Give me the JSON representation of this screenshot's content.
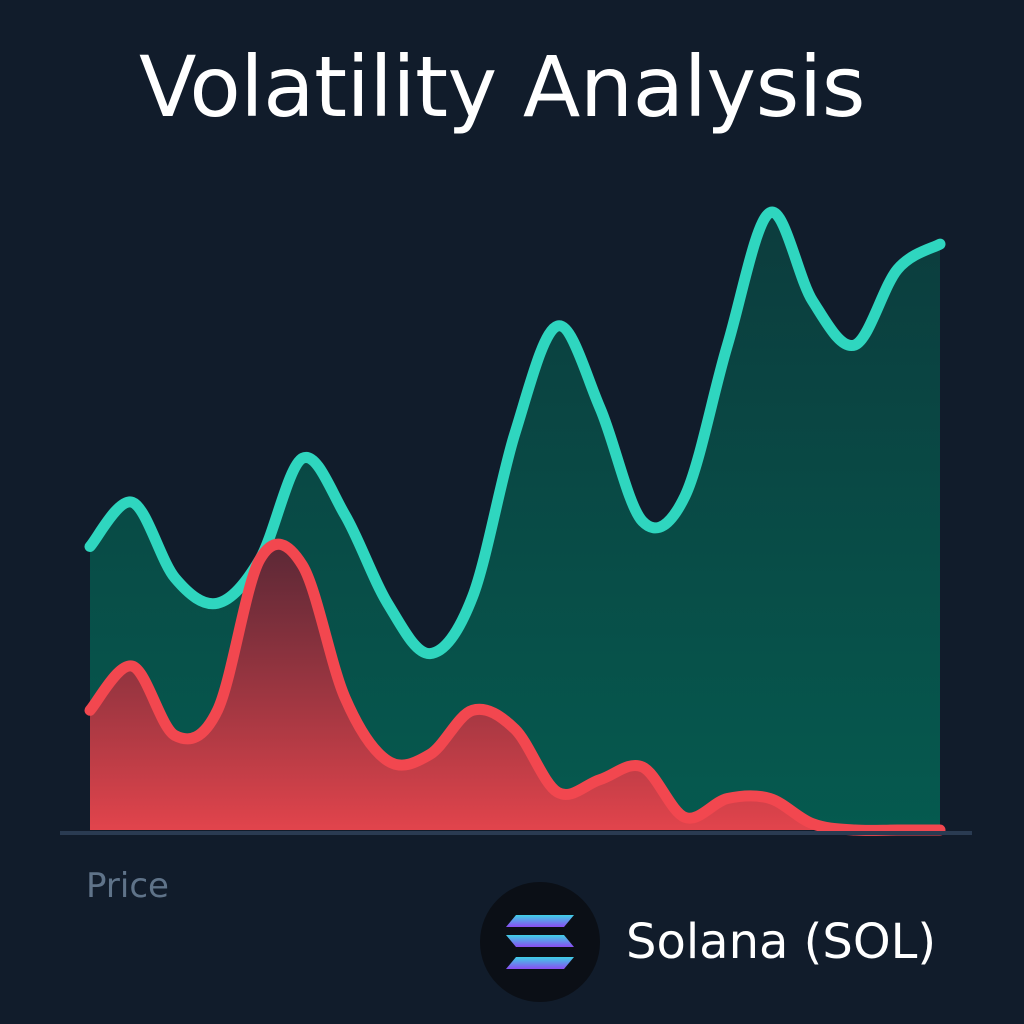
{
  "title": "Volatility Analysis",
  "axis_label": "Price",
  "asset": {
    "name": "Solana (SOL)",
    "icon": "solana-logo-icon"
  },
  "colors": {
    "background": "#111c2b",
    "teal": "#2fd6bf",
    "red": "#f2474f",
    "axis": "#2a3b52"
  },
  "chart_data": {
    "type": "line",
    "title": "Volatility Analysis",
    "xlabel": "",
    "ylabel": "Price",
    "ylim": [
      0,
      100
    ],
    "xlim": [
      0,
      20
    ],
    "grid": false,
    "legend": "none",
    "series": [
      {
        "color": "#2fd6bf",
        "fill": true,
        "x": [
          0,
          1,
          2,
          3,
          4,
          5,
          6,
          7,
          8,
          9,
          10,
          11,
          12,
          13,
          14,
          15,
          16,
          17,
          18,
          19,
          20
        ],
        "y": [
          45,
          52,
          40,
          36,
          43,
          59,
          50,
          36,
          28,
          37,
          63,
          80,
          67,
          49,
          53,
          77,
          98,
          84,
          77,
          89,
          93
        ]
      },
      {
        "color": "#f2474f",
        "fill": true,
        "x": [
          0,
          1,
          2,
          3,
          4,
          5,
          6,
          7,
          8,
          9,
          10,
          11,
          12,
          13,
          14,
          15,
          16,
          17,
          18,
          19,
          20
        ],
        "y": [
          19,
          26,
          15,
          19,
          43,
          42,
          21,
          11,
          12,
          19,
          16,
          6,
          8,
          10,
          2,
          5,
          5,
          1,
          0,
          0,
          0
        ]
      }
    ]
  }
}
